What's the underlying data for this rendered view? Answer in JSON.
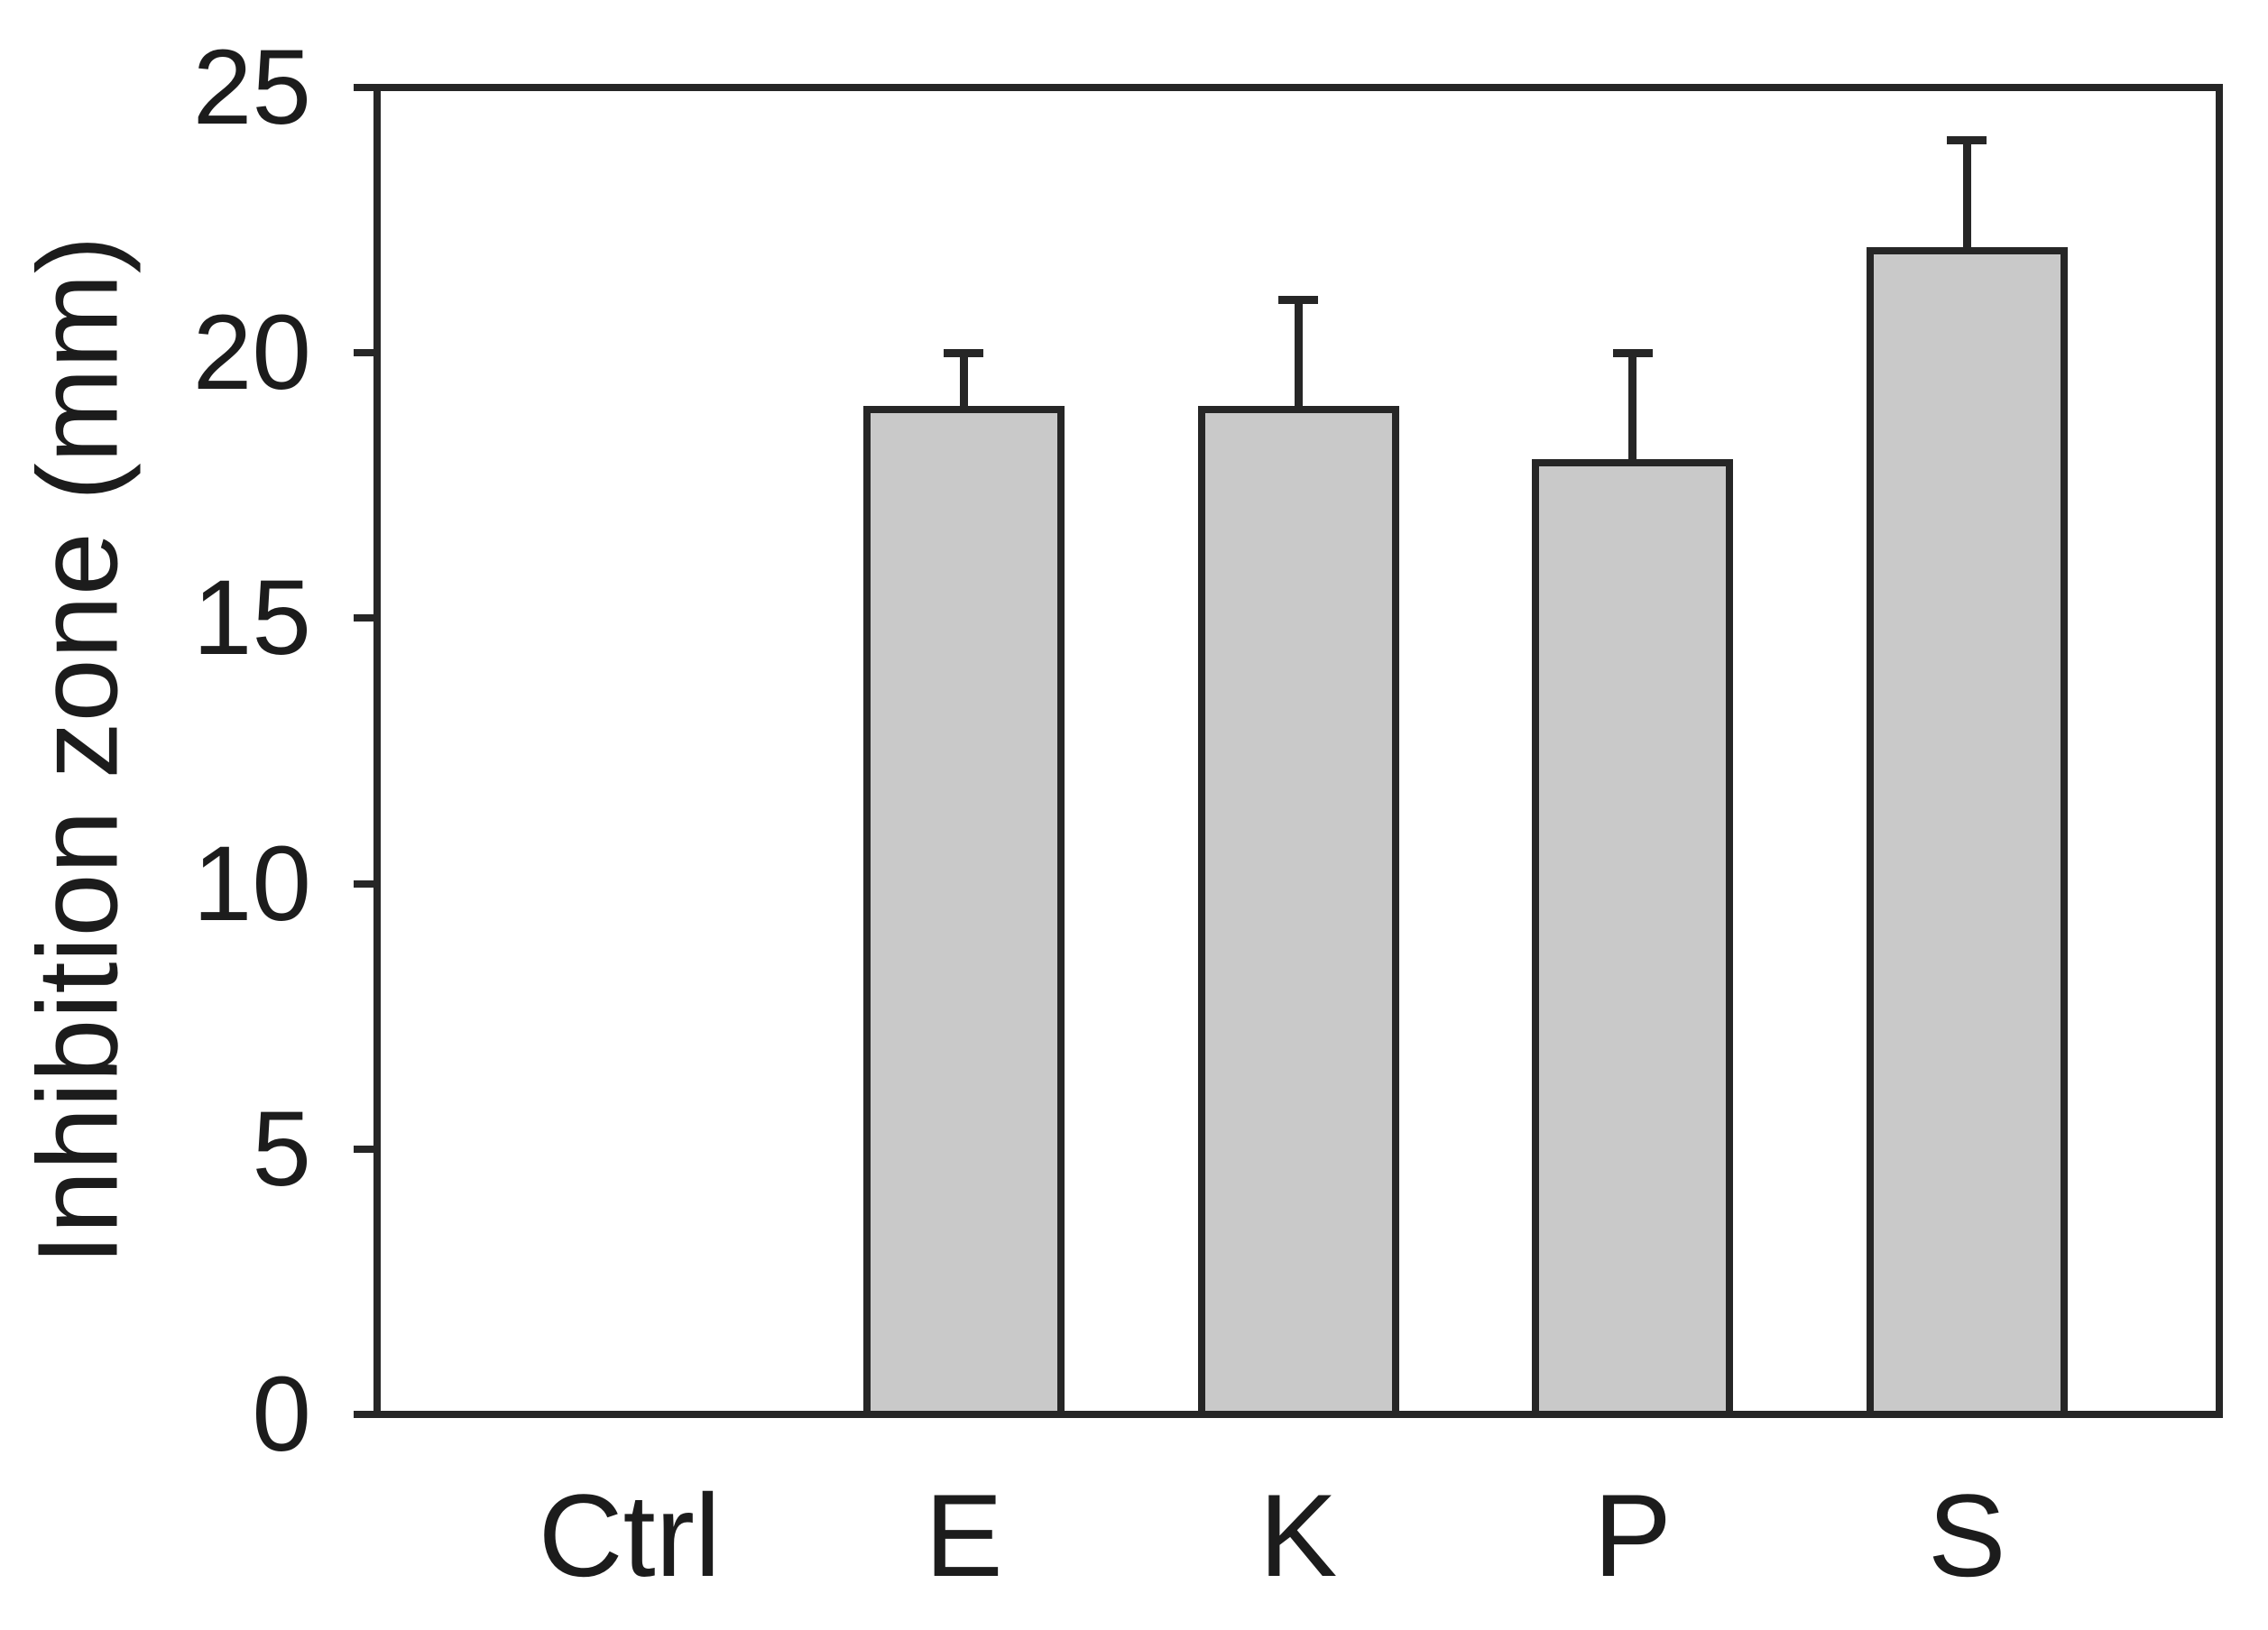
{
  "chart_data": {
    "type": "bar",
    "categories": [
      "Ctrl",
      "E",
      "K",
      "P",
      "S"
    ],
    "values": [
      0,
      19,
      19,
      18,
      22
    ],
    "errors_plus": [
      0,
      1,
      2,
      2,
      2
    ],
    "error_direction": "up",
    "title": "",
    "xlabel": "",
    "ylabel": "Inhibition zone (mm)",
    "ylim": [
      0,
      25
    ],
    "yticks": [
      0,
      5,
      10,
      15,
      20,
      25
    ],
    "grid": false,
    "legend": false,
    "bar_fill_color": "#c9c9c9",
    "bar_edge_color": "#262626",
    "error_bar_color": "#262626",
    "axis_color": "#262626",
    "text_color": "#1c1c1c",
    "background_color": "#ffffff"
  }
}
